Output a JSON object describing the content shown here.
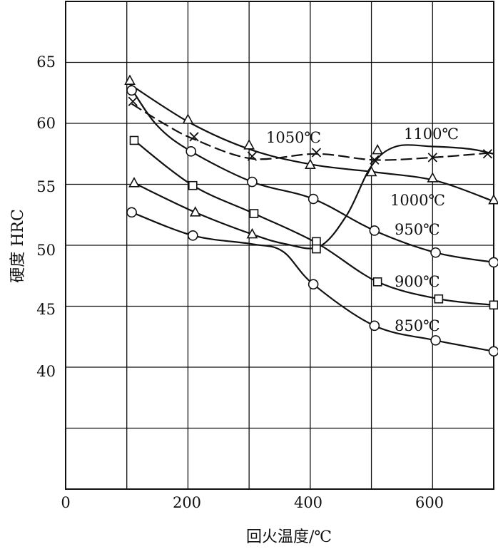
{
  "chart_data": {
    "type": "line",
    "xlabel": "回火温度/℃",
    "ylabel": "硬度 HRC",
    "xlim": [
      0,
      700
    ],
    "ylim": [
      30,
      70
    ],
    "x_ticks": [
      "0",
      "200",
      "400",
      "600"
    ],
    "y_ticks": [
      "40",
      "45",
      "50",
      "55",
      "60",
      "65"
    ],
    "grid": true,
    "series": [
      {
        "name": "1100℃",
        "marker": "triangle",
        "x": [
          105,
          200,
          300,
          400,
          500,
          510,
          600,
          700
        ],
        "y": [
          63.5,
          60.3,
          58.2,
          56.6,
          56.0,
          57.8,
          55.5,
          53.7
        ]
      },
      {
        "name": "1050℃",
        "marker": "cross",
        "x": [
          110,
          210,
          305,
          410,
          505,
          600,
          690
        ],
        "y": [
          61.8,
          58.9,
          57.3,
          57.6,
          57.0,
          57.2,
          57.5
        ]
      },
      {
        "name": "1000℃",
        "marker": "circle",
        "x": [
          108,
          205,
          305,
          405,
          505,
          605,
          700
        ],
        "y": [
          62.7,
          57.7,
          55.2,
          53.8,
          51.2,
          49.4,
          48.6
        ]
      },
      {
        "name": "950℃",
        "marker": "square",
        "x": [
          112,
          208,
          308,
          410,
          410,
          510,
          610,
          700
        ],
        "y": [
          58.6,
          54.9,
          52.6,
          50.3,
          49.7,
          47.0,
          45.6,
          45.1
        ]
      },
      {
        "name": "900℃",
        "marker": "triangle",
        "x": [
          112,
          212,
          305
        ],
        "y": [
          55.1,
          52.7,
          50.9
        ]
      },
      {
        "name": "850℃",
        "marker": "circle",
        "x": [
          108,
          208,
          405,
          505,
          605,
          700
        ],
        "y": [
          52.7,
          50.8,
          46.8,
          43.4,
          42.2,
          41.3
        ]
      }
    ],
    "annotations": [
      "1050℃",
      "1100℃",
      "1000℃",
      "950℃",
      "900℃",
      "850℃"
    ]
  }
}
